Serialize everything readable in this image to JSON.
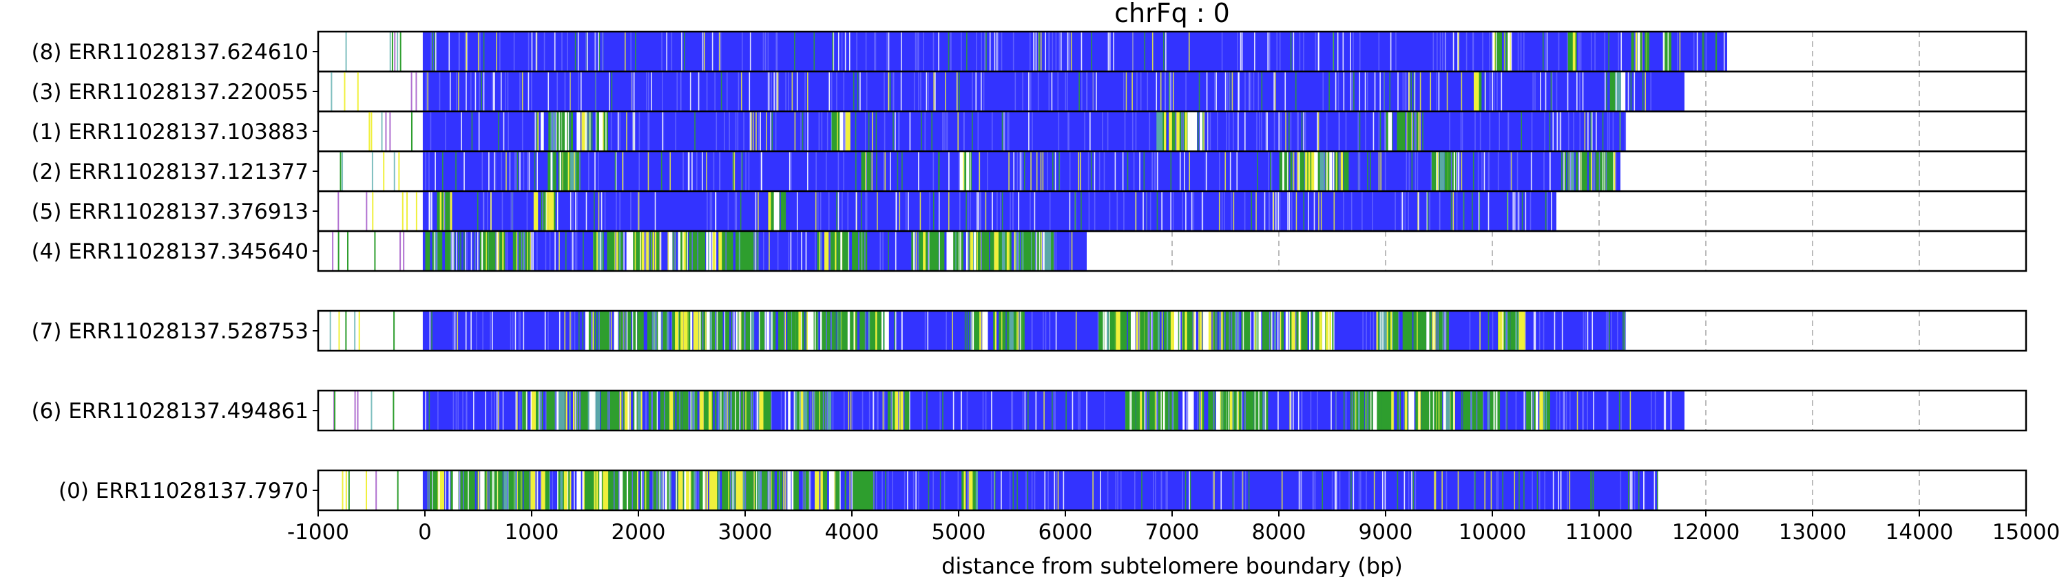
{
  "chart_data": {
    "type": "bar",
    "title": "chrFq : 0",
    "xlabel": "distance from subtelomere boundary (bp)",
    "ylabel": "",
    "xlim": [
      -1000,
      15000
    ],
    "xticks": [
      -1000,
      0,
      1000,
      2000,
      3000,
      4000,
      5000,
      6000,
      7000,
      8000,
      9000,
      10000,
      11000,
      12000,
      13000,
      14000,
      15000
    ],
    "grid": "vertical dashed",
    "colors": {
      "main": "#3333ff",
      "green": "#2e9e2e",
      "yellow": "#f0f03c",
      "white": "#ffffff",
      "purple": "#b070d0",
      "grid": "#bbbbbb"
    },
    "groups": [
      {
        "reads": [
          {
            "label": "(8) ERR11028137.624610",
            "start": -900,
            "end": 12200,
            "green": [
              [
                9950,
                10150
              ],
              [
                11300,
                11450
              ],
              [
                11550,
                11650
              ],
              [
                10700,
                10750
              ]
            ]
          },
          {
            "label": "(3) ERR11028137.220055",
            "start": -900,
            "end": 11800,
            "green": [
              [
                9800,
                9900
              ],
              [
                11100,
                11200
              ]
            ]
          },
          {
            "label": "(1) ERR11028137.103883",
            "start": -900,
            "end": 11250,
            "green": [
              [
                1000,
                1700
              ],
              [
                6850,
                7300
              ],
              [
                9000,
                9300
              ],
              [
                3800,
                3950
              ]
            ]
          },
          {
            "label": "(2) ERR11028137.121377",
            "start": -900,
            "end": 11200,
            "green": [
              [
                8000,
                8650
              ],
              [
                10650,
                11150
              ],
              [
                1150,
                1450
              ],
              [
                4050,
                4150
              ],
              [
                9400,
                9700
              ],
              [
                5000,
                5100
              ]
            ]
          },
          {
            "label": "(5) ERR11028137.376913",
            "start": -900,
            "end": 10600,
            "green": [
              [
                100,
                250
              ],
              [
                1000,
                1200
              ],
              [
                3200,
                3350
              ]
            ]
          },
          {
            "label": "(4) ERR11028137.345640",
            "start": -1000,
            "end": 6200,
            "green": [
              [
                0,
                250
              ],
              [
                500,
                1000
              ],
              [
                1500,
                3100
              ],
              [
                3650,
                4100
              ],
              [
                4550,
                5900
              ]
            ]
          }
        ]
      },
      {
        "reads": [
          {
            "label": "(7) ERR11028137.528753",
            "start": -900,
            "end": 11250,
            "green": [
              [
                1500,
                4300
              ],
              [
                5100,
                5600
              ],
              [
                6300,
                8500
              ],
              [
                8900,
                9600
              ],
              [
                10050,
                10300
              ]
            ]
          }
        ]
      },
      {
        "reads": [
          {
            "label": "(6) ERR11028137.494861",
            "start": -900,
            "end": 11800,
            "green": [
              [
                900,
                3200
              ],
              [
                3400,
                3800
              ],
              [
                4300,
                4500
              ],
              [
                6550,
                7900
              ],
              [
                8650,
                10050
              ],
              [
                10300,
                10500
              ]
            ]
          }
        ]
      },
      {
        "reads": [
          {
            "label": "(0) ERR11028137.7970",
            "start": -900,
            "end": 11550,
            "green": [
              [
                0,
                4200
              ],
              [
                5000,
                5200
              ]
            ]
          }
        ]
      }
    ]
  }
}
